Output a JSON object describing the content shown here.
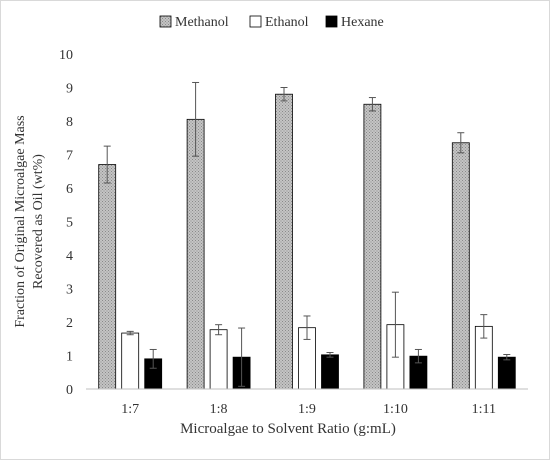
{
  "chart_data": {
    "type": "bar",
    "xlabel": "Microalgae to Solvent Ratio (g:mL)",
    "ylabel_lines": [
      "Fraction of Original Microalgae Mass",
      "Recovered as Oil (wt%)"
    ],
    "categories": [
      "1:7",
      "1:8",
      "1:9",
      "1:10",
      "1:11"
    ],
    "ylim": [
      0,
      10
    ],
    "yticks": [
      0,
      1,
      2,
      3,
      4,
      5,
      6,
      7,
      8,
      9,
      10
    ],
    "grid": false,
    "legend_position": "top",
    "series": [
      {
        "name": "Methanol",
        "values": [
          6.7,
          8.05,
          8.8,
          8.5,
          7.35
        ],
        "errors": [
          0.55,
          1.1,
          0.2,
          0.2,
          0.3
        ],
        "fill": "#bdbdbd",
        "pattern": "dotted"
      },
      {
        "name": "Ethanol",
        "values": [
          1.67,
          1.77,
          1.83,
          1.92,
          1.87
        ],
        "errors": [
          0.05,
          0.15,
          0.35,
          0.97,
          0.35
        ],
        "fill": "#ffffff",
        "pattern": "solid"
      },
      {
        "name": "Hexane",
        "values": [
          0.9,
          0.95,
          1.02,
          0.98,
          0.95
        ],
        "errors": [
          0.28,
          0.87,
          0.07,
          0.2,
          0.08
        ],
        "fill": "#000000",
        "pattern": "solid"
      }
    ]
  }
}
